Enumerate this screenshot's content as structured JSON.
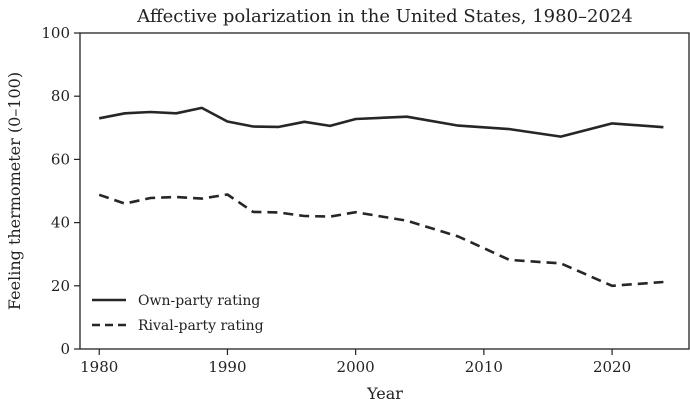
{
  "chart_data": {
    "type": "line",
    "title": "Affective polarization in the United States, 1980–2024",
    "xlabel": "Year",
    "ylabel": "Feeling thermometer (0–100)",
    "xlim": [
      1978.5,
      2026
    ],
    "ylim": [
      0,
      100
    ],
    "xticks": [
      1980,
      1990,
      2000,
      2010,
      2020
    ],
    "yticks": [
      0,
      20,
      40,
      60,
      80,
      100
    ],
    "grid": false,
    "legend_position": "lower-left",
    "x": [
      1980,
      1982,
      1984,
      1986,
      1988,
      1990,
      1992,
      1994,
      1996,
      1998,
      2000,
      2004,
      2008,
      2012,
      2016,
      2020,
      2024
    ],
    "series": [
      {
        "name": "Own-party rating",
        "style": "solid",
        "color": "#262626",
        "values": [
          73.0,
          74.6,
          75.0,
          74.6,
          76.3,
          72.0,
          70.4,
          70.3,
          71.9,
          70.6,
          72.8,
          73.5,
          70.7,
          69.6,
          67.2,
          71.4,
          70.2
        ]
      },
      {
        "name": "Rival-party rating",
        "style": "dashed",
        "color": "#262626",
        "values": [
          48.8,
          46.0,
          47.8,
          48.1,
          47.6,
          48.9,
          43.4,
          43.2,
          42.1,
          41.9,
          43.3,
          40.6,
          35.6,
          28.2,
          27.1,
          20.0,
          21.2
        ]
      }
    ]
  }
}
